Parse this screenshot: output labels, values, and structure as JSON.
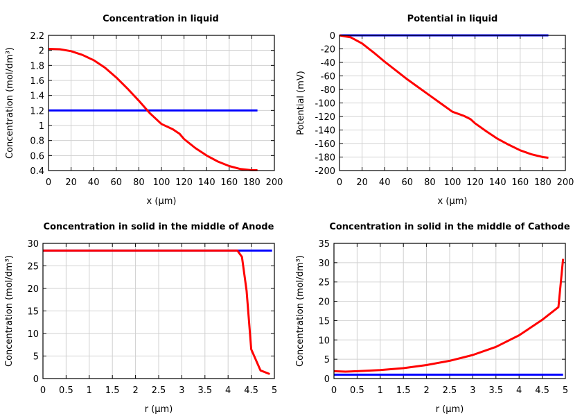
{
  "chart_data": [
    {
      "type": "line",
      "title": "Concentration in liquid",
      "xlabel": "x (µm)",
      "ylabel": "Concentration (mol/dm³)",
      "xlim": [
        0,
        200
      ],
      "ylim": [
        0.4,
        2.2
      ],
      "xticks": [
        "0",
        "20",
        "40",
        "60",
        "80",
        "100",
        "120",
        "140",
        "160",
        "180",
        "200"
      ],
      "yticks": [
        "0.4",
        "0.6",
        "0.8",
        "1",
        "1.2",
        "1.4",
        "1.6",
        "1.8",
        "2",
        "2.2"
      ],
      "grid": true,
      "series": [
        {
          "color": "#0000ff",
          "x": [
            0,
            185
          ],
          "y": [
            1.2,
            1.2
          ]
        },
        {
          "color": "#ff0000",
          "x": [
            0,
            10,
            20,
            30,
            40,
            50,
            60,
            70,
            80,
            90,
            100,
            110,
            116,
            120,
            130,
            140,
            150,
            160,
            170,
            180,
            185
          ],
          "y": [
            2.02,
            2.015,
            1.99,
            1.94,
            1.87,
            1.77,
            1.64,
            1.49,
            1.33,
            1.16,
            1.02,
            0.95,
            0.89,
            0.82,
            0.7,
            0.6,
            0.52,
            0.46,
            0.42,
            0.405,
            0.405
          ]
        }
      ]
    },
    {
      "type": "line",
      "title": "Potential in liquid",
      "xlabel": "x (µm)",
      "ylabel": "Potential (mV)",
      "xlim": [
        0,
        200
      ],
      "ylim": [
        -200,
        0
      ],
      "xticks": [
        "0",
        "20",
        "40",
        "60",
        "80",
        "100",
        "120",
        "140",
        "160",
        "180",
        "200"
      ],
      "yticks": [
        "-200",
        "-180",
        "-160",
        "-140",
        "-120",
        "-100",
        "-80",
        "-60",
        "-40",
        "-20",
        "0"
      ],
      "grid": true,
      "series": [
        {
          "color": "#0000ff",
          "x": [
            0,
            185
          ],
          "y": [
            0,
            0
          ]
        },
        {
          "color": "#ff0000",
          "x": [
            0,
            10,
            20,
            30,
            40,
            50,
            60,
            70,
            80,
            90,
            100,
            110,
            116,
            120,
            130,
            140,
            150,
            160,
            170,
            180,
            185
          ],
          "y": [
            0,
            -3,
            -12,
            -25,
            -39,
            -52,
            -65,
            -77,
            -89,
            -101,
            -113,
            -119,
            -124,
            -130,
            -142,
            -153,
            -162,
            -170,
            -176,
            -180,
            -181
          ]
        }
      ]
    },
    {
      "type": "line",
      "title": "Concentration in solid in the middle of Anode",
      "xlabel": "r (µm)",
      "ylabel": "Concentration (mol/dm³)",
      "xlim": [
        0,
        5
      ],
      "ylim": [
        0,
        30
      ],
      "xticks": [
        "0",
        "0.5",
        "1",
        "1.5",
        "2",
        "2.5",
        "3",
        "3.5",
        "4",
        "4.5",
        "5"
      ],
      "yticks": [
        "0",
        "5",
        "10",
        "15",
        "20",
        "25",
        "30"
      ],
      "grid": true,
      "series": [
        {
          "color": "#0000ff",
          "x": [
            0,
            4.95
          ],
          "y": [
            28.4,
            28.4
          ]
        },
        {
          "color": "#ff0000",
          "x": [
            0,
            4.2,
            4.3,
            4.4,
            4.5,
            4.7,
            4.9
          ],
          "y": [
            28.4,
            28.4,
            27,
            19.5,
            6.5,
            1.8,
            1.0
          ]
        }
      ]
    },
    {
      "type": "line",
      "title": "Concentration in solid in the middle of Cathode",
      "xlabel": "r (µm)",
      "ylabel": "Concentration (mol/dm³)",
      "xlim": [
        0,
        5
      ],
      "ylim": [
        0,
        35
      ],
      "xticks": [
        "0",
        "0.5",
        "1",
        "1.5",
        "2",
        "2.5",
        "3",
        "3.5",
        "4",
        "4.5",
        "5"
      ],
      "yticks": [
        "0",
        "5",
        "10",
        "15",
        "20",
        "25",
        "30",
        "35"
      ],
      "grid": true,
      "series": [
        {
          "color": "#0000ff",
          "x": [
            0,
            4.95
          ],
          "y": [
            1.0,
            1.0
          ]
        },
        {
          "color": "#ff0000",
          "x": [
            0,
            0.25,
            0.5,
            1,
            1.5,
            2,
            2.5,
            3,
            3.5,
            4,
            4.5,
            4.85,
            4.95
          ],
          "y": [
            1.9,
            1.8,
            1.9,
            2.2,
            2.7,
            3.5,
            4.6,
            6.1,
            8.2,
            11.2,
            15.2,
            18.5,
            31
          ]
        }
      ]
    }
  ]
}
